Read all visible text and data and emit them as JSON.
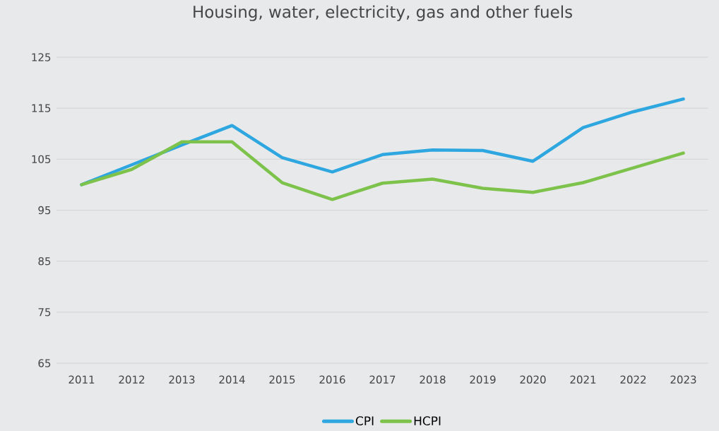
{
  "chart_data": {
    "type": "line",
    "title": "Housing, water, electricity, gas and other fuels",
    "categories": [
      "2011",
      "2012",
      "2013",
      "2014",
      "2015",
      "2016",
      "2017",
      "2018",
      "2019",
      "2020",
      "2021",
      "2022",
      "2023"
    ],
    "series": [
      {
        "name": "CPI",
        "color": "#2ea7e0",
        "values": [
          100,
          103.9,
          107.8,
          111.6,
          105.3,
          102.5,
          105.9,
          106.8,
          106.7,
          104.6,
          111.2,
          114.3,
          116.8
        ]
      },
      {
        "name": "HCPI",
        "color": "#7dc24b",
        "values": [
          100,
          103.0,
          108.4,
          108.4,
          100.4,
          97.1,
          100.3,
          101.1,
          99.3,
          98.5,
          100.4,
          103.3,
          106.2
        ]
      }
    ],
    "ylim": [
      65,
      125
    ],
    "yticks": [
      65,
      75,
      85,
      95,
      105,
      115,
      125
    ],
    "grid": "y",
    "legend": "bottom"
  }
}
